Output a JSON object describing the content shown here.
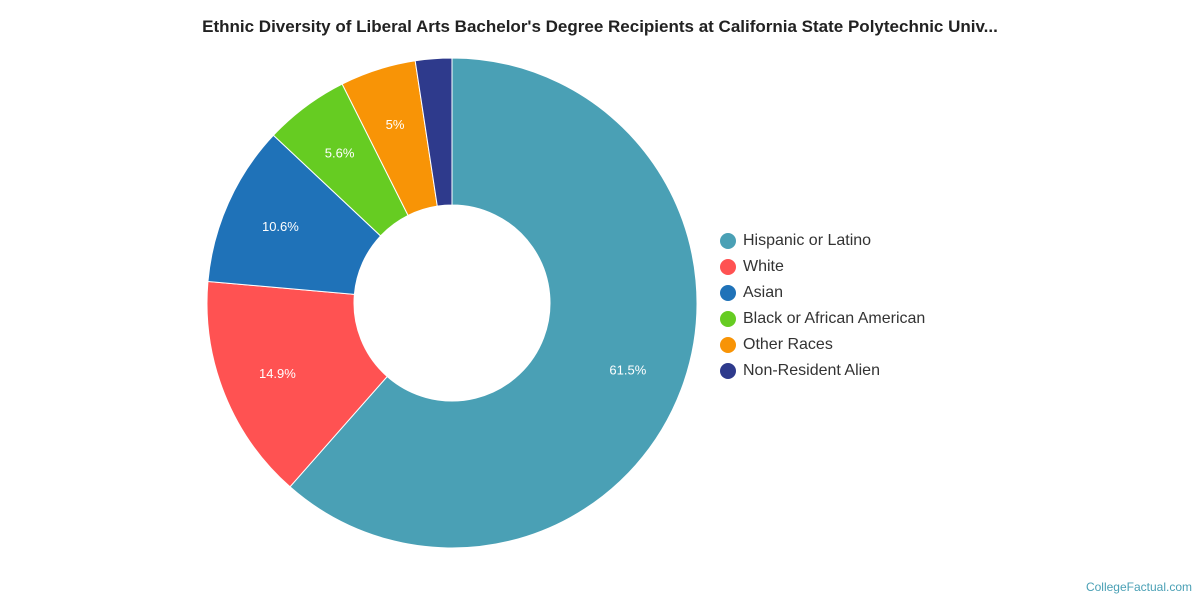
{
  "chart_data": {
    "type": "pie",
    "style": "donut",
    "title": "Ethnic Diversity of Liberal Arts Bachelor's Degree Recipients at California State Polytechnic Univ...",
    "categories": [
      "Hispanic or Latino",
      "White",
      "Asian",
      "Black or African American",
      "Other Races",
      "Non-Resident Alien"
    ],
    "values": [
      61.5,
      14.9,
      10.6,
      5.6,
      5,
      2.4
    ],
    "data_labels": [
      "61.5%",
      "14.9%",
      "10.6%",
      "5.6%",
      "5%",
      ""
    ],
    "colors": [
      "#4aa0b5",
      "#ff5252",
      "#1f72b8",
      "#66cc22",
      "#f89406",
      "#2e3a8c"
    ],
    "legend_position": "right"
  },
  "footer": {
    "credit": "CollegeFactual.com"
  }
}
